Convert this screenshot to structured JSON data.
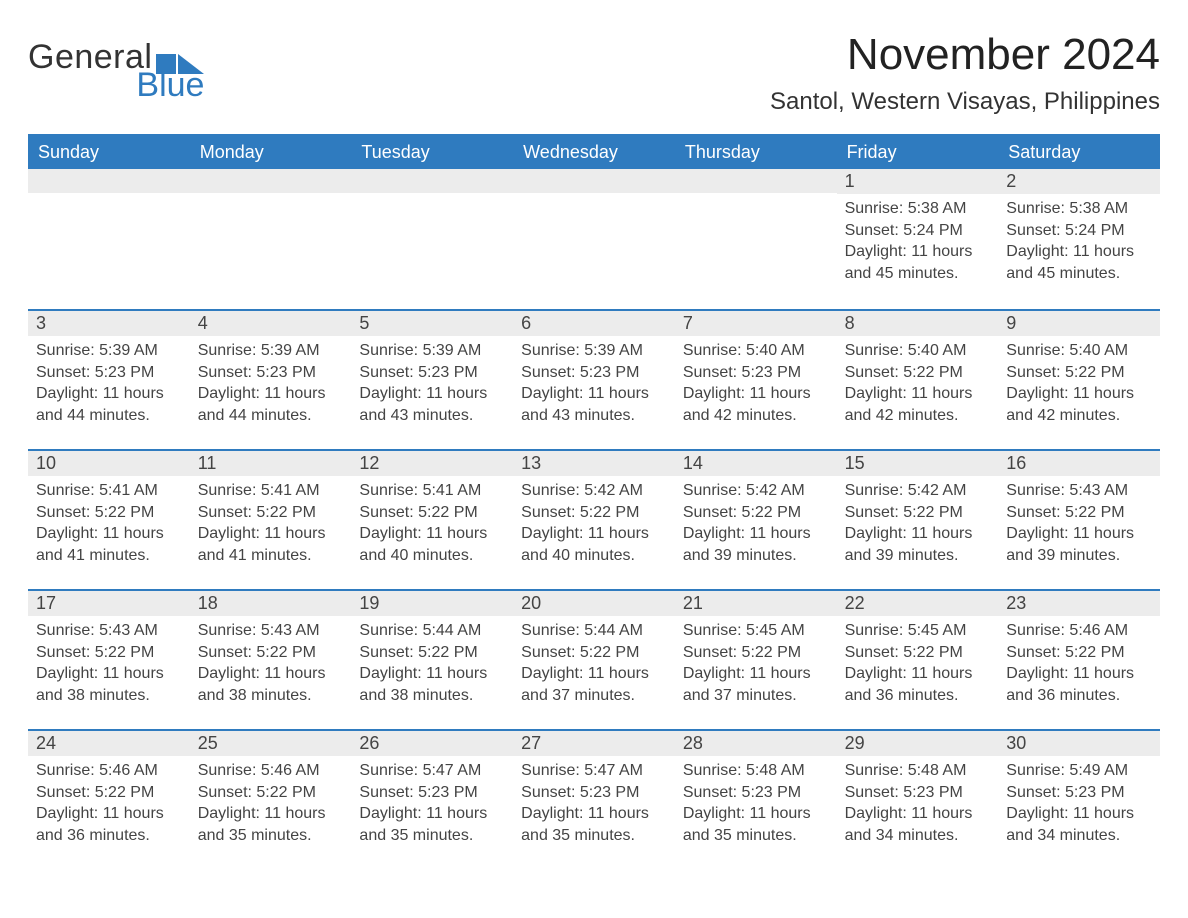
{
  "logo": {
    "text1": "General",
    "text2": "Blue"
  },
  "title": "November 2024",
  "location": "Santol, Western Visayas, Philippines",
  "daynames": [
    "Sunday",
    "Monday",
    "Tuesday",
    "Wednesday",
    "Thursday",
    "Friday",
    "Saturday"
  ],
  "colors": {
    "header_bg": "#2f7bbf",
    "row_divider": "#2f7bbf",
    "daynum_bg": "#ececec",
    "text": "#333333"
  },
  "typography": {
    "title_fontsize": 44,
    "location_fontsize": 24,
    "dayname_fontsize": 18,
    "daynum_fontsize": 18,
    "details_fontsize": 16
  },
  "weeks": [
    [
      {
        "day": null
      },
      {
        "day": null
      },
      {
        "day": null
      },
      {
        "day": null
      },
      {
        "day": null
      },
      {
        "day": "1",
        "sunrise": "Sunrise: 5:38 AM",
        "sunset": "Sunset: 5:24 PM",
        "daylight1": "Daylight: 11 hours",
        "daylight2": "and 45 minutes."
      },
      {
        "day": "2",
        "sunrise": "Sunrise: 5:38 AM",
        "sunset": "Sunset: 5:24 PM",
        "daylight1": "Daylight: 11 hours",
        "daylight2": "and 45 minutes."
      }
    ],
    [
      {
        "day": "3",
        "sunrise": "Sunrise: 5:39 AM",
        "sunset": "Sunset: 5:23 PM",
        "daylight1": "Daylight: 11 hours",
        "daylight2": "and 44 minutes."
      },
      {
        "day": "4",
        "sunrise": "Sunrise: 5:39 AM",
        "sunset": "Sunset: 5:23 PM",
        "daylight1": "Daylight: 11 hours",
        "daylight2": "and 44 minutes."
      },
      {
        "day": "5",
        "sunrise": "Sunrise: 5:39 AM",
        "sunset": "Sunset: 5:23 PM",
        "daylight1": "Daylight: 11 hours",
        "daylight2": "and 43 minutes."
      },
      {
        "day": "6",
        "sunrise": "Sunrise: 5:39 AM",
        "sunset": "Sunset: 5:23 PM",
        "daylight1": "Daylight: 11 hours",
        "daylight2": "and 43 minutes."
      },
      {
        "day": "7",
        "sunrise": "Sunrise: 5:40 AM",
        "sunset": "Sunset: 5:23 PM",
        "daylight1": "Daylight: 11 hours",
        "daylight2": "and 42 minutes."
      },
      {
        "day": "8",
        "sunrise": "Sunrise: 5:40 AM",
        "sunset": "Sunset: 5:22 PM",
        "daylight1": "Daylight: 11 hours",
        "daylight2": "and 42 minutes."
      },
      {
        "day": "9",
        "sunrise": "Sunrise: 5:40 AM",
        "sunset": "Sunset: 5:22 PM",
        "daylight1": "Daylight: 11 hours",
        "daylight2": "and 42 minutes."
      }
    ],
    [
      {
        "day": "10",
        "sunrise": "Sunrise: 5:41 AM",
        "sunset": "Sunset: 5:22 PM",
        "daylight1": "Daylight: 11 hours",
        "daylight2": "and 41 minutes."
      },
      {
        "day": "11",
        "sunrise": "Sunrise: 5:41 AM",
        "sunset": "Sunset: 5:22 PM",
        "daylight1": "Daylight: 11 hours",
        "daylight2": "and 41 minutes."
      },
      {
        "day": "12",
        "sunrise": "Sunrise: 5:41 AM",
        "sunset": "Sunset: 5:22 PM",
        "daylight1": "Daylight: 11 hours",
        "daylight2": "and 40 minutes."
      },
      {
        "day": "13",
        "sunrise": "Sunrise: 5:42 AM",
        "sunset": "Sunset: 5:22 PM",
        "daylight1": "Daylight: 11 hours",
        "daylight2": "and 40 minutes."
      },
      {
        "day": "14",
        "sunrise": "Sunrise: 5:42 AM",
        "sunset": "Sunset: 5:22 PM",
        "daylight1": "Daylight: 11 hours",
        "daylight2": "and 39 minutes."
      },
      {
        "day": "15",
        "sunrise": "Sunrise: 5:42 AM",
        "sunset": "Sunset: 5:22 PM",
        "daylight1": "Daylight: 11 hours",
        "daylight2": "and 39 minutes."
      },
      {
        "day": "16",
        "sunrise": "Sunrise: 5:43 AM",
        "sunset": "Sunset: 5:22 PM",
        "daylight1": "Daylight: 11 hours",
        "daylight2": "and 39 minutes."
      }
    ],
    [
      {
        "day": "17",
        "sunrise": "Sunrise: 5:43 AM",
        "sunset": "Sunset: 5:22 PM",
        "daylight1": "Daylight: 11 hours",
        "daylight2": "and 38 minutes."
      },
      {
        "day": "18",
        "sunrise": "Sunrise: 5:43 AM",
        "sunset": "Sunset: 5:22 PM",
        "daylight1": "Daylight: 11 hours",
        "daylight2": "and 38 minutes."
      },
      {
        "day": "19",
        "sunrise": "Sunrise: 5:44 AM",
        "sunset": "Sunset: 5:22 PM",
        "daylight1": "Daylight: 11 hours",
        "daylight2": "and 38 minutes."
      },
      {
        "day": "20",
        "sunrise": "Sunrise: 5:44 AM",
        "sunset": "Sunset: 5:22 PM",
        "daylight1": "Daylight: 11 hours",
        "daylight2": "and 37 minutes."
      },
      {
        "day": "21",
        "sunrise": "Sunrise: 5:45 AM",
        "sunset": "Sunset: 5:22 PM",
        "daylight1": "Daylight: 11 hours",
        "daylight2": "and 37 minutes."
      },
      {
        "day": "22",
        "sunrise": "Sunrise: 5:45 AM",
        "sunset": "Sunset: 5:22 PM",
        "daylight1": "Daylight: 11 hours",
        "daylight2": "and 36 minutes."
      },
      {
        "day": "23",
        "sunrise": "Sunrise: 5:46 AM",
        "sunset": "Sunset: 5:22 PM",
        "daylight1": "Daylight: 11 hours",
        "daylight2": "and 36 minutes."
      }
    ],
    [
      {
        "day": "24",
        "sunrise": "Sunrise: 5:46 AM",
        "sunset": "Sunset: 5:22 PM",
        "daylight1": "Daylight: 11 hours",
        "daylight2": "and 36 minutes."
      },
      {
        "day": "25",
        "sunrise": "Sunrise: 5:46 AM",
        "sunset": "Sunset: 5:22 PM",
        "daylight1": "Daylight: 11 hours",
        "daylight2": "and 35 minutes."
      },
      {
        "day": "26",
        "sunrise": "Sunrise: 5:47 AM",
        "sunset": "Sunset: 5:23 PM",
        "daylight1": "Daylight: 11 hours",
        "daylight2": "and 35 minutes."
      },
      {
        "day": "27",
        "sunrise": "Sunrise: 5:47 AM",
        "sunset": "Sunset: 5:23 PM",
        "daylight1": "Daylight: 11 hours",
        "daylight2": "and 35 minutes."
      },
      {
        "day": "28",
        "sunrise": "Sunrise: 5:48 AM",
        "sunset": "Sunset: 5:23 PM",
        "daylight1": "Daylight: 11 hours",
        "daylight2": "and 35 minutes."
      },
      {
        "day": "29",
        "sunrise": "Sunrise: 5:48 AM",
        "sunset": "Sunset: 5:23 PM",
        "daylight1": "Daylight: 11 hours",
        "daylight2": "and 34 minutes."
      },
      {
        "day": "30",
        "sunrise": "Sunrise: 5:49 AM",
        "sunset": "Sunset: 5:23 PM",
        "daylight1": "Daylight: 11 hours",
        "daylight2": "and 34 minutes."
      }
    ]
  ]
}
